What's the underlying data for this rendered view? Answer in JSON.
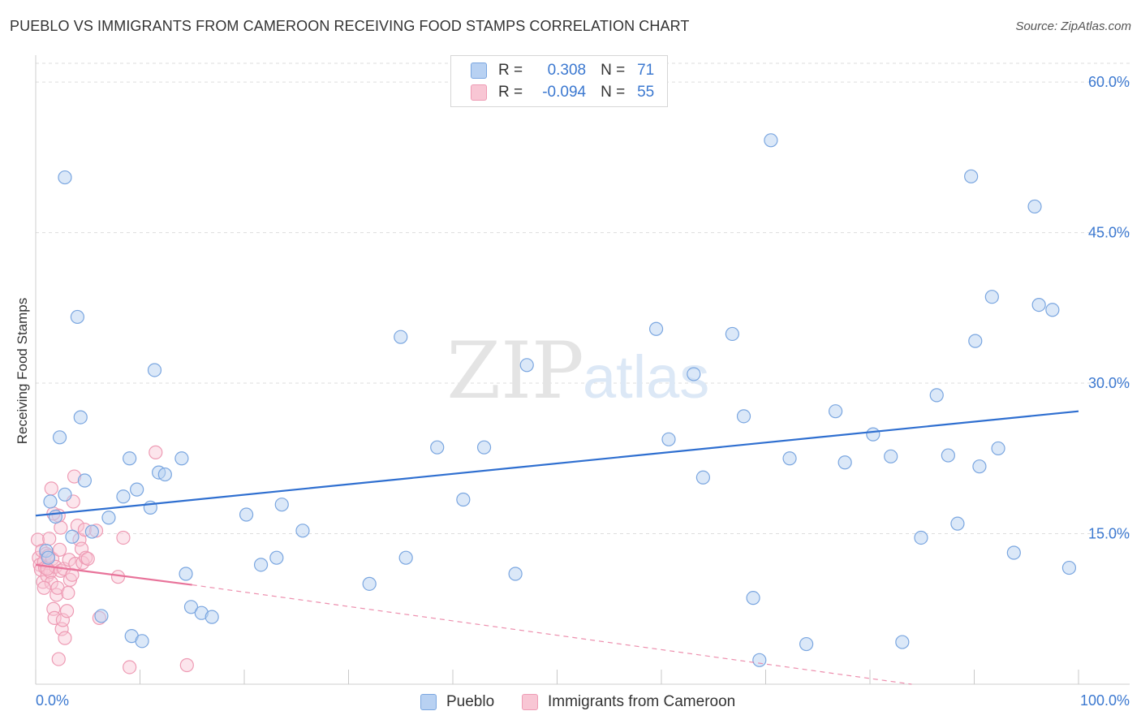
{
  "title": "PUEBLO VS IMMIGRANTS FROM CAMEROON RECEIVING FOOD STAMPS CORRELATION CHART",
  "source": "Source: ZipAtlas.com",
  "watermark": {
    "zip": "ZIP",
    "atlas": "atlas"
  },
  "legend_stats": [
    {
      "r_label": "R =",
      "r_value": "0.308",
      "n_label": "N =",
      "n_value": "71"
    },
    {
      "r_label": "R =",
      "r_value": "-0.094",
      "n_label": "N =",
      "n_value": "55"
    }
  ],
  "colors": {
    "pueblo_fill": "#b8d1f2",
    "pueblo_stroke": "#7aa6e0",
    "pueblo_line": "#2f6fd0",
    "cameroon_fill": "#f8c6d4",
    "cameroon_stroke": "#ee9bb4",
    "cameroon_line": "#e8739a",
    "axis_text": "#3b78d0",
    "grid": "#dddddd"
  },
  "chart_data": {
    "type": "scatter",
    "title": "PUEBLO VS IMMIGRANTS FROM CAMEROON RECEIVING FOOD STAMPS CORRELATION CHART",
    "xlabel": "",
    "ylabel": "Receiving Food Stamps",
    "x_tick_labels": [
      "0.0%",
      "100.0%"
    ],
    "y_tick_labels": [
      "15.0%",
      "30.0%",
      "45.0%",
      "60.0%"
    ],
    "y_ticks": [
      15,
      30,
      45,
      60
    ],
    "xlim": [
      0,
      100
    ],
    "ylim": [
      0,
      63
    ],
    "grid": true,
    "legend_position": "bottom",
    "series": [
      {
        "name": "Pueblo",
        "points": [
          [
            2.8,
            50.5
          ],
          [
            4,
            36.6
          ],
          [
            11.4,
            31.3
          ],
          [
            4.3,
            26.6
          ],
          [
            2.3,
            24.6
          ],
          [
            9,
            22.5
          ],
          [
            14,
            22.5
          ],
          [
            11.8,
            21.1
          ],
          [
            12.4,
            20.9
          ],
          [
            4.7,
            20.3
          ],
          [
            9.7,
            19.4
          ],
          [
            8.4,
            18.7
          ],
          [
            2.8,
            18.9
          ],
          [
            1.4,
            18.2
          ],
          [
            11,
            17.6
          ],
          [
            1.9,
            16.7
          ],
          [
            7,
            16.6
          ],
          [
            5.4,
            15.2
          ],
          [
            3.5,
            14.7
          ],
          [
            1,
            13.3
          ],
          [
            1.2,
            12.6
          ],
          [
            14.4,
            11
          ],
          [
            6.3,
            6.8
          ],
          [
            9.2,
            4.8
          ],
          [
            10.2,
            4.3
          ],
          [
            14.9,
            7.7
          ],
          [
            15.9,
            7.1
          ],
          [
            16.9,
            6.7
          ],
          [
            20.2,
            16.9
          ],
          [
            21.6,
            11.9
          ],
          [
            23.1,
            12.6
          ],
          [
            23.6,
            17.9
          ],
          [
            25.6,
            15.3
          ],
          [
            32,
            10
          ],
          [
            35,
            34.6
          ],
          [
            35.5,
            12.6
          ],
          [
            38.5,
            23.6
          ],
          [
            41,
            18.4
          ],
          [
            43,
            23.6
          ],
          [
            46,
            11
          ],
          [
            47.1,
            31.8
          ],
          [
            59.5,
            35.4
          ],
          [
            60.7,
            24.4
          ],
          [
            63.1,
            30.9
          ],
          [
            64,
            20.6
          ],
          [
            66.8,
            34.9
          ],
          [
            67.9,
            26.7
          ],
          [
            70.5,
            54.2
          ],
          [
            68.8,
            8.6
          ],
          [
            69.4,
            2.4
          ],
          [
            72.3,
            22.5
          ],
          [
            73.9,
            4
          ],
          [
            76.7,
            27.2
          ],
          [
            77.6,
            22.1
          ],
          [
            80.3,
            24.9
          ],
          [
            82,
            22.7
          ],
          [
            83.1,
            4.2
          ],
          [
            84.9,
            14.6
          ],
          [
            86.4,
            28.8
          ],
          [
            87.5,
            22.8
          ],
          [
            88.4,
            16
          ],
          [
            89.7,
            50.6
          ],
          [
            90.1,
            34.2
          ],
          [
            90.5,
            21.7
          ],
          [
            91.7,
            38.6
          ],
          [
            92.3,
            23.5
          ],
          [
            93.8,
            13.1
          ],
          [
            95.8,
            47.6
          ],
          [
            96.2,
            37.8
          ],
          [
            97.5,
            37.3
          ],
          [
            99.1,
            11.6
          ]
        ]
      },
      {
        "name": "Immigrants from Cameroon",
        "points": [
          [
            0.2,
            14.4
          ],
          [
            0.3,
            12.6
          ],
          [
            0.4,
            11.9
          ],
          [
            0.5,
            11.4
          ],
          [
            0.6,
            13.3
          ],
          [
            0.7,
            10.2
          ],
          [
            0.8,
            12.2
          ],
          [
            0.9,
            11.6
          ],
          [
            1,
            13
          ],
          [
            1.1,
            10.8
          ],
          [
            1.2,
            12.8
          ],
          [
            1.3,
            14.5
          ],
          [
            1.4,
            11.2
          ],
          [
            1.5,
            10.1
          ],
          [
            1.6,
            12.5
          ],
          [
            1.7,
            7.5
          ],
          [
            1.8,
            6.6
          ],
          [
            1.9,
            11.7
          ],
          [
            2,
            8.9
          ],
          [
            2.1,
            9.6
          ],
          [
            2.2,
            16.8
          ],
          [
            2.3,
            13.4
          ],
          [
            2.4,
            11.3
          ],
          [
            2.5,
            5.5
          ],
          [
            2.6,
            6.4
          ],
          [
            2.7,
            11.5
          ],
          [
            2.8,
            4.6
          ],
          [
            3,
            7.3
          ],
          [
            3.1,
            9.1
          ],
          [
            3.2,
            12.4
          ],
          [
            3.3,
            10.4
          ],
          [
            3.5,
            10.9
          ],
          [
            3.6,
            18.2
          ],
          [
            3.7,
            20.7
          ],
          [
            3.8,
            12
          ],
          [
            4,
            15.8
          ],
          [
            4.2,
            14.4
          ],
          [
            4.4,
            13.5
          ],
          [
            4.5,
            12.1
          ],
          [
            4.7,
            15.4
          ],
          [
            4.8,
            12.6
          ],
          [
            5,
            12.5
          ],
          [
            5.8,
            15.3
          ],
          [
            6.1,
            6.6
          ],
          [
            7.9,
            10.7
          ],
          [
            8.4,
            14.6
          ],
          [
            9.0,
            1.7
          ],
          [
            11.5,
            23.1
          ],
          [
            14.5,
            1.9
          ],
          [
            1.7,
            17
          ],
          [
            1.5,
            19.5
          ],
          [
            2.2,
            2.5
          ],
          [
            1.1,
            11.5
          ],
          [
            2.4,
            15.6
          ],
          [
            0.8,
            9.6
          ]
        ]
      }
    ],
    "trend_lines": [
      {
        "series": "Pueblo",
        "x": [
          0,
          100
        ],
        "y": [
          16.8,
          27.2
        ],
        "style": "solid"
      },
      {
        "series": "Immigrants from Cameroon",
        "x": [
          0,
          15
        ],
        "y": [
          11.9,
          9.9
        ],
        "style": "solid"
      },
      {
        "series": "Immigrants from Cameroon",
        "x": [
          15,
          84
        ],
        "y": [
          9.9,
          0
        ],
        "style": "dashed"
      }
    ]
  }
}
